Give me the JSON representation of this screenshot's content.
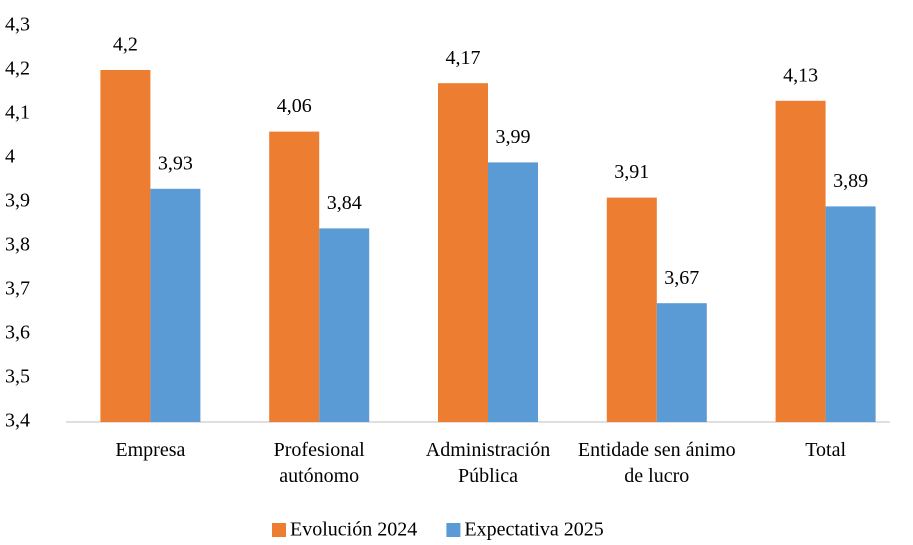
{
  "chart_data": {
    "type": "bar",
    "categories": [
      "Empresa",
      "Profesional autónomo",
      "Administración Pública",
      "Entidade sen ánimo de lucro",
      "Total"
    ],
    "series": [
      {
        "name": "Evolución 2024",
        "color": "#ed7d31",
        "values": [
          4.2,
          4.06,
          4.17,
          3.91,
          4.13
        ],
        "value_labels": [
          "4,2",
          "4,06",
          "4,17",
          "3,91",
          "4,13"
        ]
      },
      {
        "name": "Expectativa 2025",
        "color": "#5b9bd5",
        "values": [
          3.93,
          3.84,
          3.99,
          3.67,
          3.89
        ],
        "value_labels": [
          "3,93",
          "3,84",
          "3,99",
          "3,67",
          "3,89"
        ]
      }
    ],
    "ylim": [
      3.4,
      4.3
    ],
    "yticks": [
      {
        "value": 3.4,
        "label": "3,4"
      },
      {
        "value": 3.5,
        "label": "3,5"
      },
      {
        "value": 3.6,
        "label": "3,6"
      },
      {
        "value": 3.7,
        "label": "3,7"
      },
      {
        "value": 3.8,
        "label": "3,8"
      },
      {
        "value": 3.9,
        "label": "3,9"
      },
      4,
      {
        "value": 4.1,
        "label": "4,1"
      },
      {
        "value": 4.2,
        "label": "4,2"
      },
      {
        "value": 4.3,
        "label": "4,3"
      }
    ],
    "grid": false,
    "legend": "bottom"
  }
}
